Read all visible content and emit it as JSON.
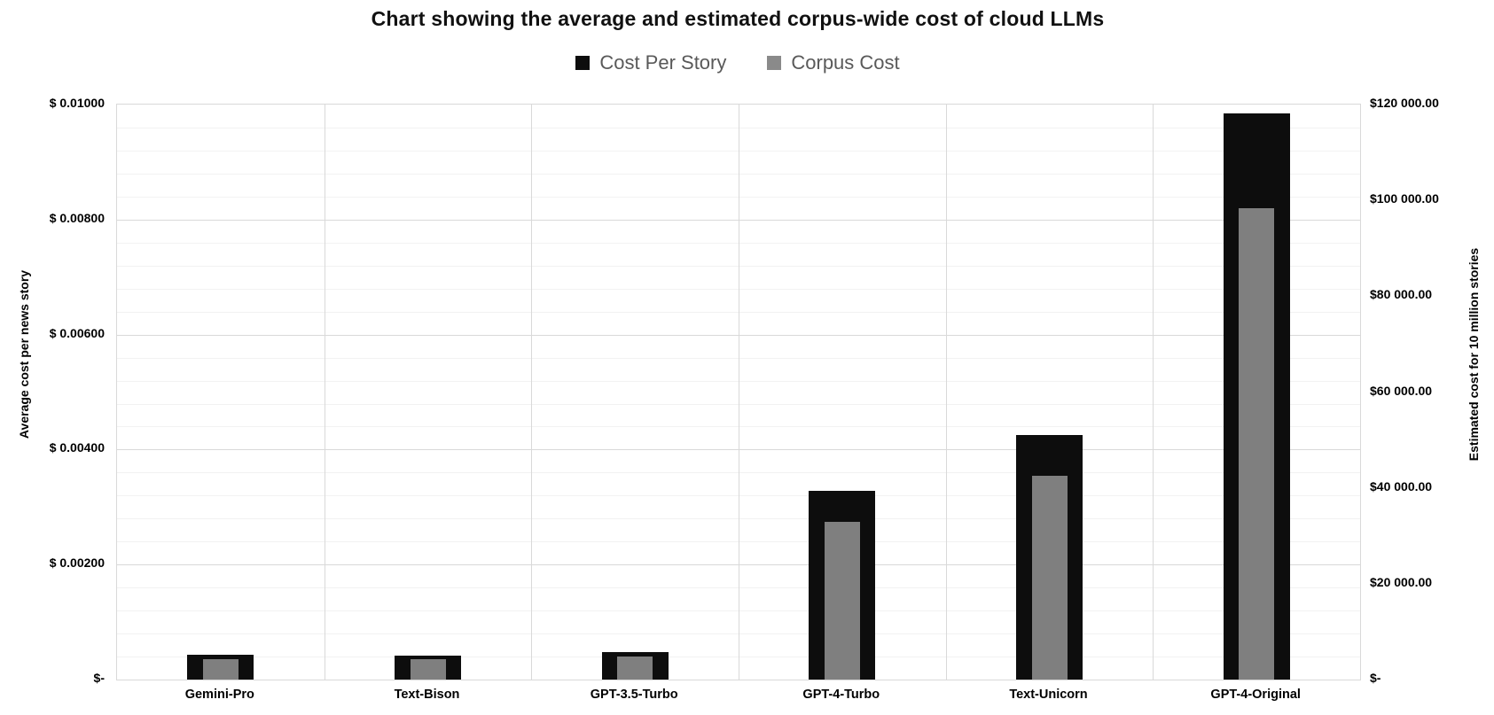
{
  "title": "Chart showing the average and estimated corpus-wide cost of cloud LLMs",
  "legend": {
    "items": [
      {
        "label": "Cost Per Story",
        "color": "#0d0d0d"
      },
      {
        "label": "Corpus Cost",
        "color": "#8a8a8a"
      }
    ]
  },
  "colors": {
    "cost_per_story_bar": "#0d0d0d",
    "corpus_cost_bar": "#7f7f7f",
    "major_gridline": "#d9d9d9",
    "minor_gridline": "#f2f2f2",
    "legend_text": "#595959"
  },
  "chart_data": {
    "type": "bar",
    "title": "Chart showing the average and estimated corpus-wide cost of cloud LLMs",
    "categories": [
      "Gemini-Pro",
      "Text-Bison",
      "GPT-3.5-Turbo",
      "GPT-4-Turbo",
      "Text-Unicorn",
      "GPT-4-Original"
    ],
    "series": [
      {
        "name": "Cost Per Story",
        "axis": "left",
        "color": "#0d0d0d",
        "values": [
          0.00043,
          0.00042,
          0.00048,
          0.00329,
          0.00426,
          0.00984
        ]
      },
      {
        "name": "Corpus Cost",
        "axis": "right",
        "color": "#7f7f7f",
        "values": [
          4300,
          4200,
          4800,
          32900,
          42600,
          98400
        ]
      }
    ],
    "left_axis": {
      "title": "Average cost per news story",
      "min": 0,
      "max": 0.01,
      "major_unit": 0.002,
      "minor_unit": 0.0004,
      "tick_labels": [
        "$ 0.01000",
        "$ 0.00800",
        "$ 0.00600",
        "$ 0.00400",
        "$ 0.00200",
        "$-"
      ]
    },
    "right_axis": {
      "title": "Estimated cost for 10 million stories",
      "min": 0,
      "max": 120000,
      "major_unit": 20000,
      "tick_labels": [
        "$120 000.00",
        "$100 000.00",
        "$80 000.00",
        "$60 000.00",
        "$40 000.00",
        "$20 000.00",
        "$-"
      ]
    },
    "grid": true,
    "legend_position": "top"
  }
}
